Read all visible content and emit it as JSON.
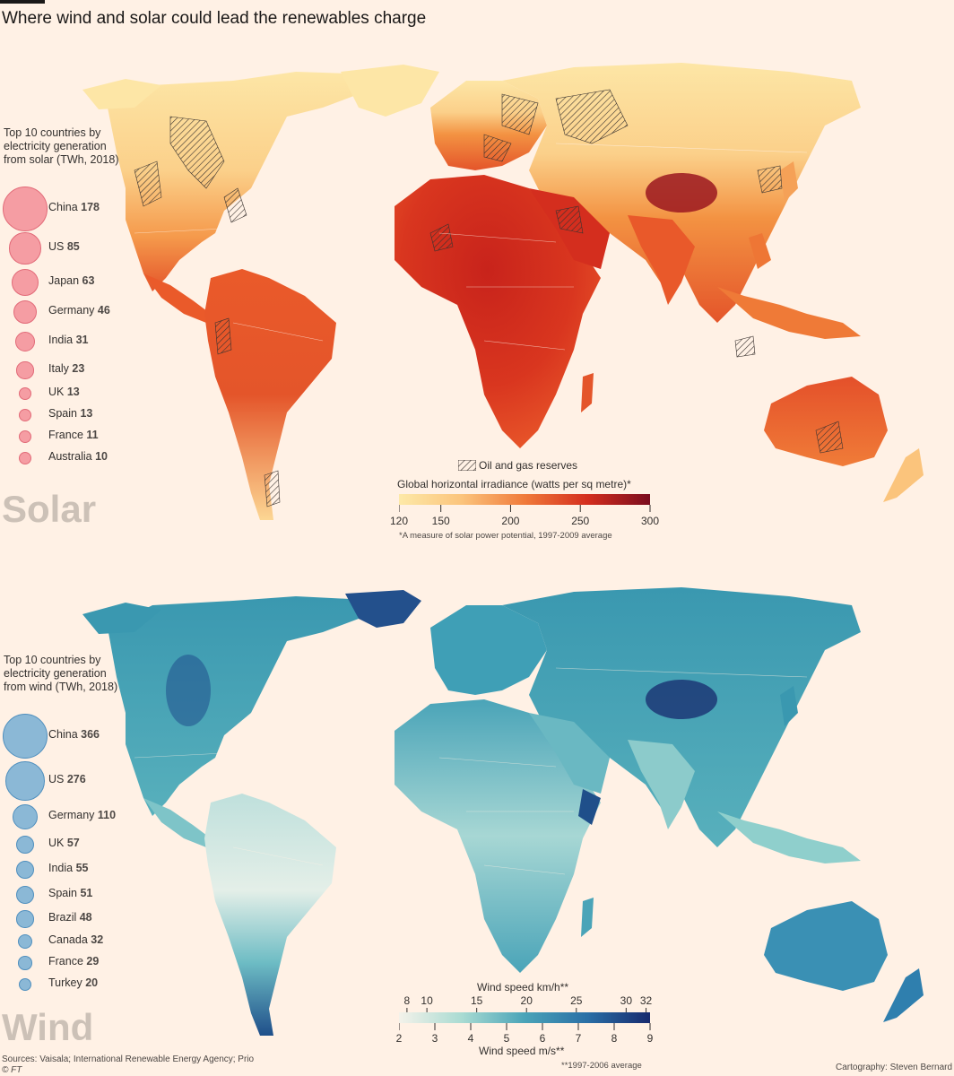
{
  "title": "Where wind and solar could lead the renewables charge",
  "solar": {
    "big_label": "Solar",
    "legend_heading": "Top 10 countries by electricity generation from solar (TWh, 2018)",
    "countries": [
      {
        "name": "China",
        "value": "178"
      },
      {
        "name": "US",
        "value": "85"
      },
      {
        "name": "Japan",
        "value": "63"
      },
      {
        "name": "Germany",
        "value": "46"
      },
      {
        "name": "India",
        "value": "31"
      },
      {
        "name": "Italy",
        "value": "23"
      },
      {
        "name": "UK",
        "value": "13"
      },
      {
        "name": "Spain",
        "value": "13"
      },
      {
        "name": "France",
        "value": "11"
      },
      {
        "name": "Australia",
        "value": "10"
      }
    ],
    "hatch_label": "Oil and gas reserves",
    "scale_title": "Global horizontal irradiance (watts per sq metre)*",
    "scale_ticks": [
      "120",
      "150",
      "200",
      "250",
      "300"
    ],
    "scale_values": [
      120,
      150,
      200,
      250,
      300
    ],
    "scale_range": [
      120,
      300
    ],
    "footnote": "*A measure of solar power potential, 1997-2009 average",
    "colors": {
      "bubble": "#f2808c",
      "low": "#fde9a8",
      "mid": "#f07a3a",
      "high": "#7a0c1e"
    }
  },
  "wind": {
    "big_label": "Wind",
    "legend_heading": "Top 10 countries by electricity generation from wind (TWh, 2018)",
    "countries": [
      {
        "name": "China",
        "value": "366"
      },
      {
        "name": "US",
        "value": "276"
      },
      {
        "name": "Germany",
        "value": "110"
      },
      {
        "name": "UK",
        "value": "57"
      },
      {
        "name": "India",
        "value": "55"
      },
      {
        "name": "Spain",
        "value": "51"
      },
      {
        "name": "Brazil",
        "value": "48"
      },
      {
        "name": "Canada",
        "value": "32"
      },
      {
        "name": "France",
        "value": "29"
      },
      {
        "name": "Turkey",
        "value": "20"
      }
    ],
    "kmh_title": "Wind speed km/h**",
    "kmh_ticks": [
      "8",
      "10",
      "15",
      "20",
      "25",
      "30",
      "32"
    ],
    "kmh_values": [
      8,
      10,
      15,
      20,
      25,
      30,
      32
    ],
    "ms_ticks": [
      "2",
      "3",
      "4",
      "5",
      "6",
      "7",
      "8",
      "9"
    ],
    "ms_values": [
      2,
      3,
      4,
      5,
      6,
      7,
      8,
      9
    ],
    "ms_title": "Wind speed m/s**",
    "footnote": "**1997-2006 average",
    "colors": {
      "bubble": "#6eaad2",
      "low": "#f4f2ea",
      "mid": "#3a98b0",
      "high": "#172a6e"
    }
  },
  "sources": "Sources: Vaisala; International Renewable Energy Agency; Prio",
  "copyright": "© FT",
  "credit": "Cartography: Steven Bernard"
}
